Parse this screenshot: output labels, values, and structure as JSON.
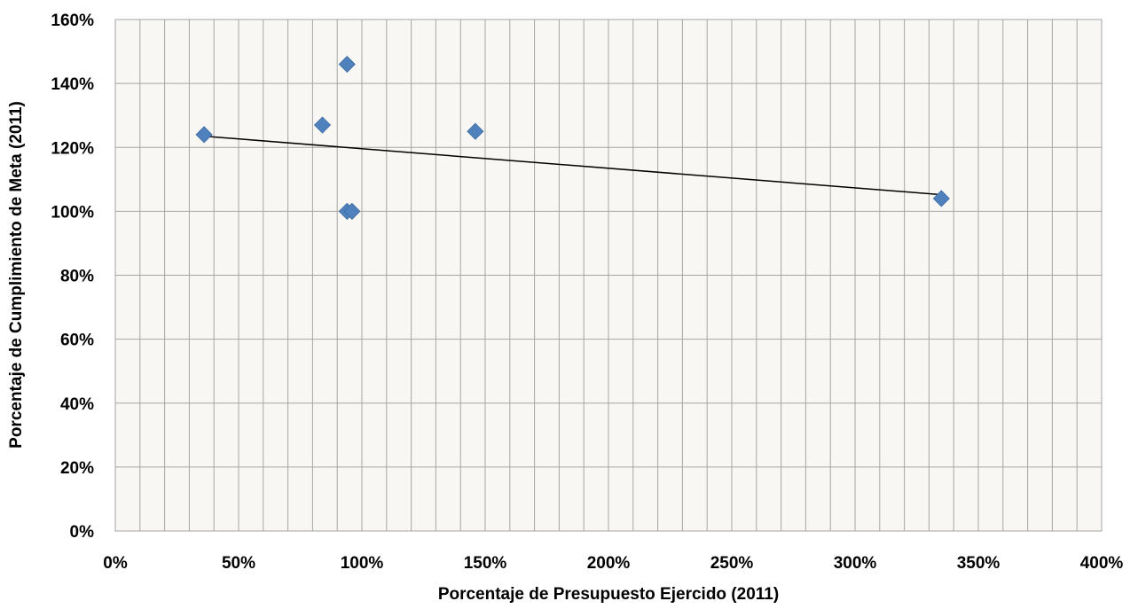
{
  "chart_data": {
    "type": "scatter",
    "title": "",
    "xlabel": "Porcentaje de Presupuesto Ejercido (2011)",
    "ylabel": "Porcentaje de Cumplimiento de Meta (2011)",
    "xlim": [
      0,
      4
    ],
    "ylim": [
      0,
      1.6
    ],
    "x_ticks": [
      0,
      0.5,
      1,
      1.5,
      2,
      2.5,
      3,
      3.5,
      4
    ],
    "x_tick_labels": [
      "0%",
      "50%",
      "100%",
      "150%",
      "200%",
      "250%",
      "300%",
      "350%",
      "400%"
    ],
    "y_ticks": [
      0,
      0.2,
      0.4,
      0.6,
      0.8,
      1,
      1.2,
      1.4,
      1.6
    ],
    "y_tick_labels": [
      "0%",
      "20%",
      "40%",
      "60%",
      "80%",
      "100%",
      "120%",
      "140%",
      "160%"
    ],
    "x_minor_step": 0.1,
    "grid": true,
    "legend": "none",
    "marker": "diamond",
    "colors": {
      "marker": "#4f81bd",
      "plot_background": "#f8f7f3",
      "grid": "#a6a6a6",
      "trendline": "#000000"
    },
    "points": [
      {
        "x": 0.36,
        "y": 1.24
      },
      {
        "x": 0.84,
        "y": 1.27
      },
      {
        "x": 0.94,
        "y": 1.46
      },
      {
        "x": 0.94,
        "y": 1.0
      },
      {
        "x": 0.96,
        "y": 1.0
      },
      {
        "x": 1.46,
        "y": 1.25
      },
      {
        "x": 3.35,
        "y": 1.04
      }
    ],
    "trendline": {
      "type": "linear",
      "x": [
        0.36,
        3.35
      ],
      "y": [
        1.235,
        1.052
      ]
    }
  }
}
